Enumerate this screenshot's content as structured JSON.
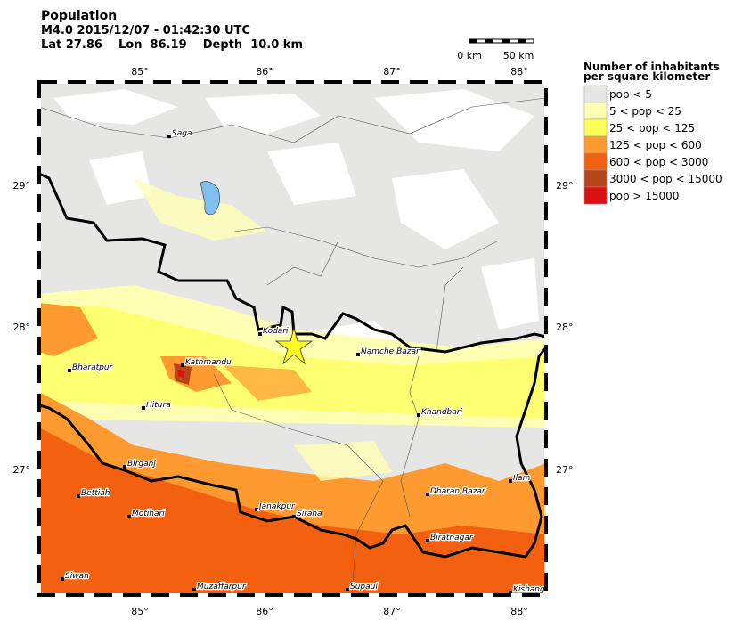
{
  "header": {
    "title": "Population",
    "lines": [
      "M4.0  2015/12/07 - 01:42:30 UTC",
      "Lat 27.86    Lon  86.19    Depth  10.0 km"
    ]
  },
  "scale_bar": {
    "labels": [
      "0 km",
      "50 km"
    ]
  },
  "map": {
    "lon_labels": [
      "85°",
      "86°",
      "87°",
      "88°"
    ],
    "lat_labels": [
      "29°",
      "28°",
      "27°"
    ],
    "cities": [
      "Saga",
      "Kodari",
      "Namche Bazar",
      "Bharatpur",
      "Kathmandu",
      "Hitura",
      "Khandbari",
      "Birganj",
      "Ilam",
      "Bettiah",
      "Dharan Bazar",
      "Janakpur",
      "Motihari",
      "Siraha",
      "Biratnagar",
      "Siwan",
      "Muzaffarpur",
      "Supaul",
      "Kishang"
    ]
  },
  "legend": {
    "title": [
      "Number of inhabitants",
      "per square kilometer"
    ],
    "items": [
      {
        "label": "pop < 5",
        "color": "#e6e6e4"
      },
      {
        "label": "5 < pop < 25",
        "color": "#ffffb4"
      },
      {
        "label": "25 < pop < 125",
        "color": "#ffff55"
      },
      {
        "label": "125 < pop < 600",
        "color": "#ff9a30"
      },
      {
        "label": "600 < pop < 3000",
        "color": "#f26010"
      },
      {
        "label": "3000 < pop < 15000",
        "color": "#b8441a"
      },
      {
        "label": "pop > 15000",
        "color": "#dc1010"
      }
    ]
  }
}
